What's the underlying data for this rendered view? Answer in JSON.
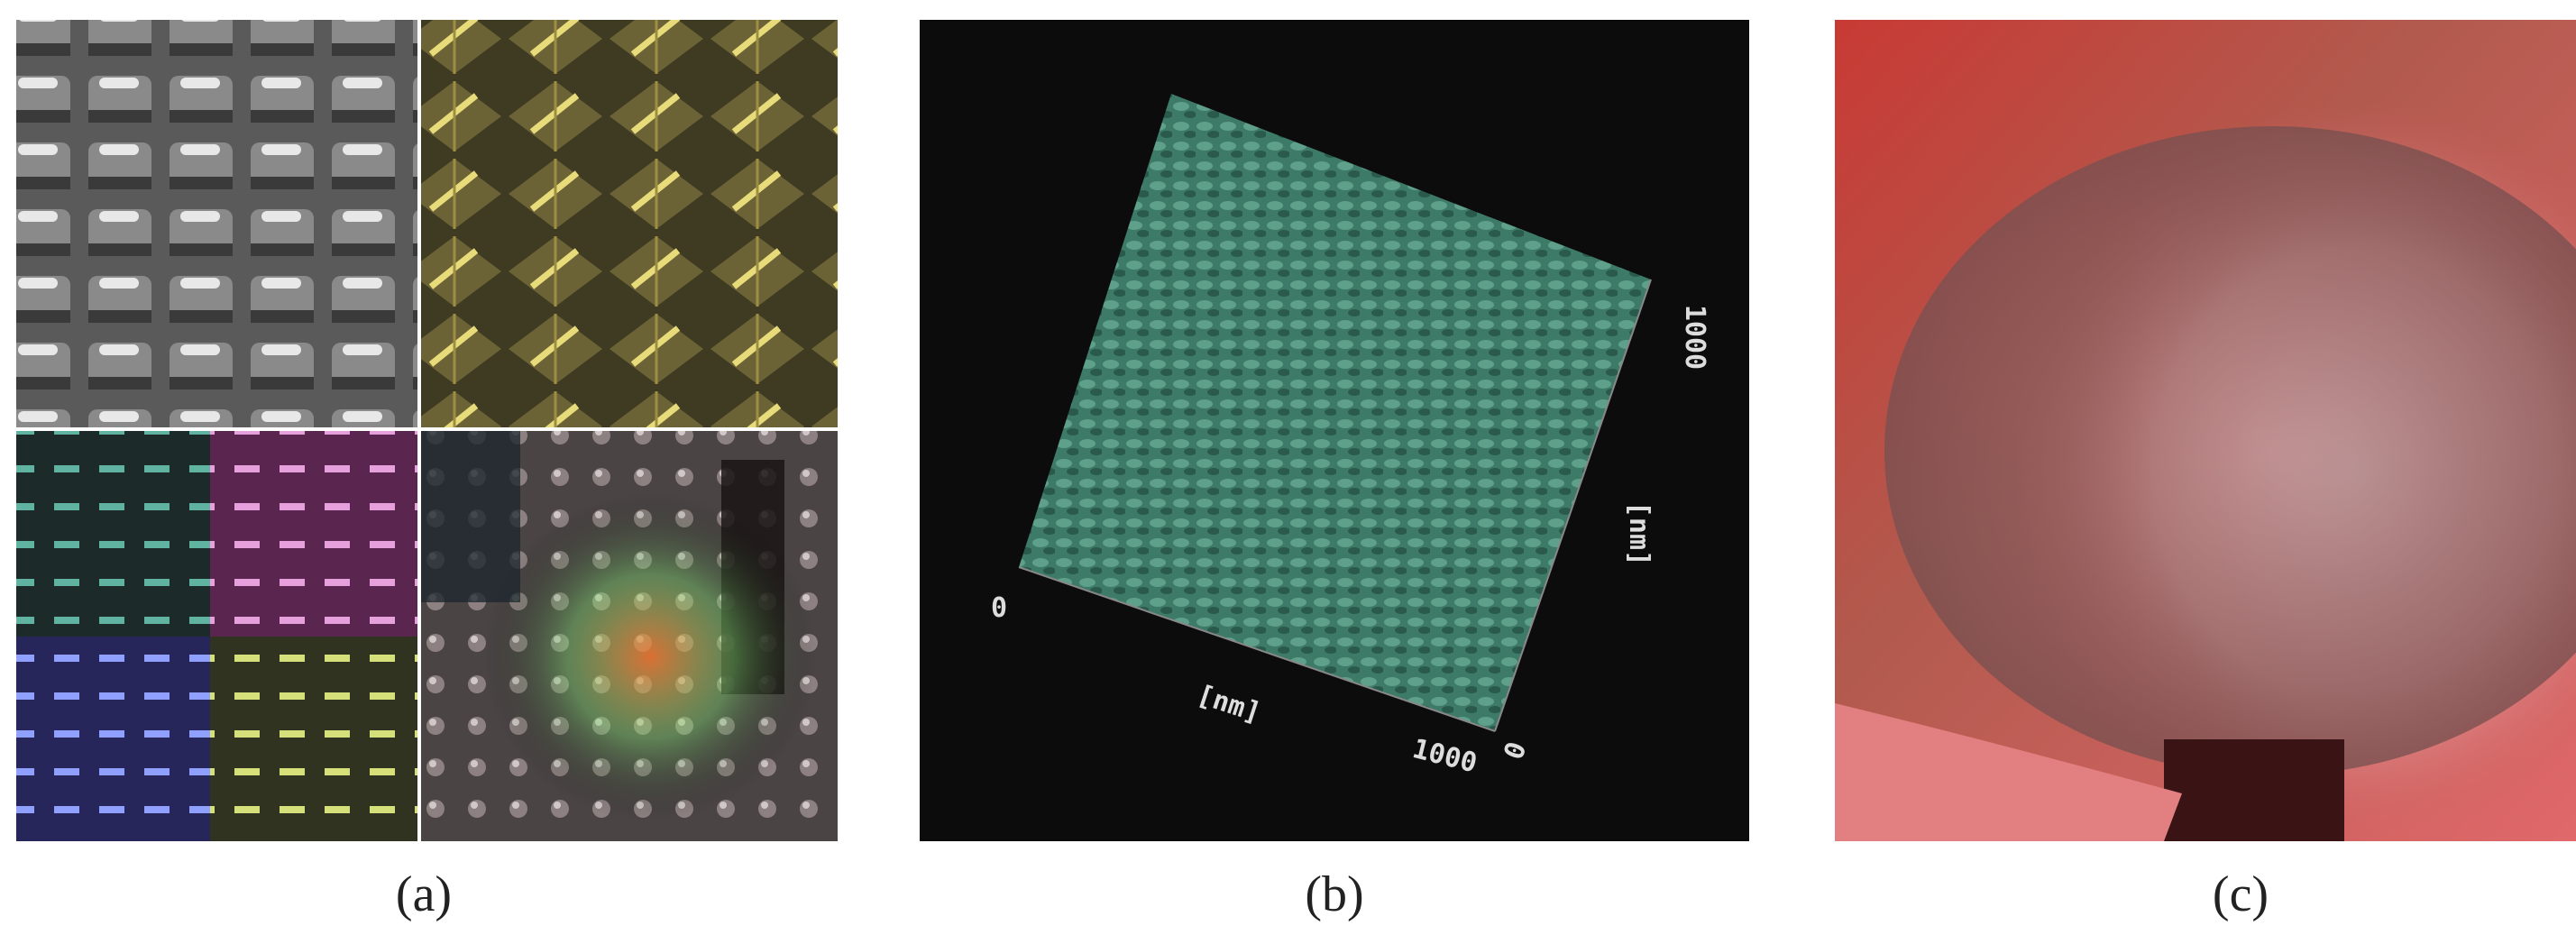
{
  "figure": {
    "panels": [
      {
        "label": "(a)"
      },
      {
        "label": "(b)",
        "annotations": [
          "0",
          "[nm]",
          "1000",
          "0",
          "1000",
          "[nm]"
        ]
      },
      {
        "label": "(c)"
      }
    ]
  }
}
